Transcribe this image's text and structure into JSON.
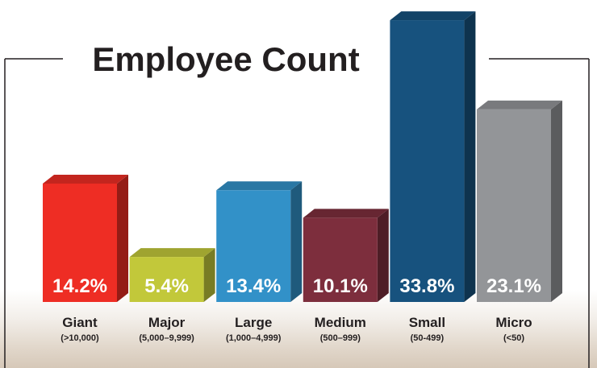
{
  "chart_data": {
    "type": "bar",
    "title": "Employee Count",
    "xlabel": "",
    "ylabel": "",
    "ylim": [
      0,
      34
    ],
    "categories": [
      "Giant",
      "Major",
      "Large",
      "Medium",
      "Small",
      "Micro"
    ],
    "category_sublabels": [
      "(>10,000)",
      "(5,000–9,999)",
      "(1,000–4,999)",
      "(500–999)",
      "(50-499)",
      "(<50)"
    ],
    "values": [
      14.2,
      5.4,
      13.4,
      10.1,
      33.8,
      23.1
    ],
    "value_labels": [
      "14.2%",
      "5.4%",
      "13.4%",
      "10.1%",
      "33.8%",
      "23.1%"
    ],
    "bar_colors": [
      "#ee2d24",
      "#c2c83a",
      "#3291c8",
      "#7d2e3d",
      "#17527e",
      "#939598"
    ],
    "grid": false,
    "legend": "none"
  }
}
